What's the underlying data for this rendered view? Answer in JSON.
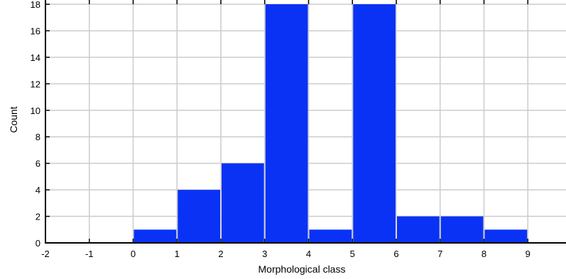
{
  "chart_data": {
    "type": "bar",
    "bin_edges": [
      0,
      1,
      2,
      3,
      4,
      5,
      6,
      7,
      8,
      9
    ],
    "values": [
      1,
      4,
      6,
      18,
      1,
      18,
      2,
      2,
      1
    ],
    "xlabel": "Morphological class",
    "ylabel": "Count",
    "xlim": [
      -2,
      10
    ],
    "ylim": [
      0,
      18
    ],
    "x_ticks": [
      "-2",
      "-1",
      "0",
      "1",
      "2",
      "3",
      "4",
      "5",
      "6",
      "7",
      "8",
      "9"
    ],
    "y_ticks": [
      "0",
      "2",
      "4",
      "6",
      "8",
      "10",
      "12",
      "14",
      "16",
      "18"
    ],
    "grid": true,
    "bar_color": "#0a32f5",
    "grid_color": "#cccccc"
  }
}
